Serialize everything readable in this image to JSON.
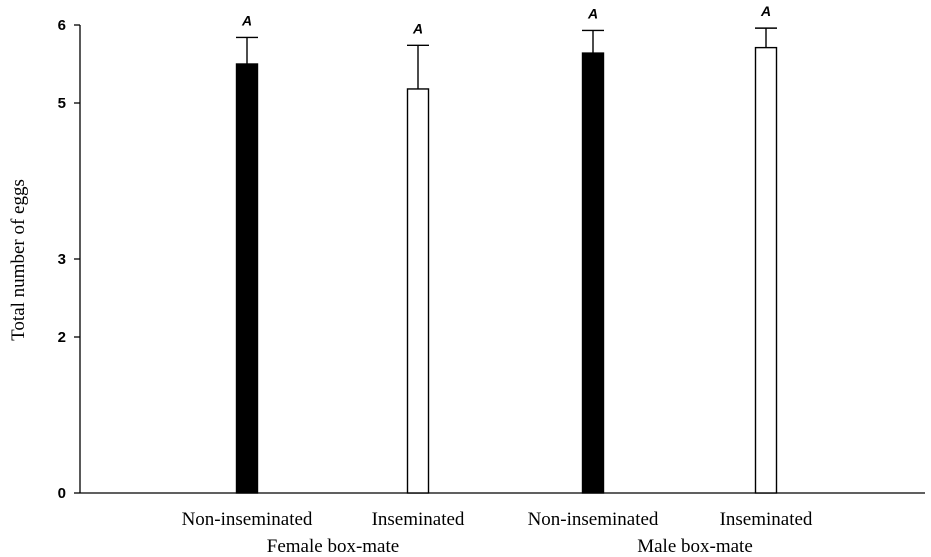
{
  "chart_data": {
    "type": "bar",
    "ylabel": "Total number of eggs",
    "ylim": [
      0,
      6
    ],
    "yticks": [
      0,
      2,
      3,
      5,
      6
    ],
    "categories": [
      "Non-inseminated",
      "Inseminated",
      "Non-inseminated",
      "Inseminated"
    ],
    "groups": [
      {
        "label": "Female box-mate",
        "categories": [
          0,
          1
        ]
      },
      {
        "label": "Male box-mate",
        "categories": [
          2,
          3
        ]
      }
    ],
    "bars": [
      {
        "category": "Non-inseminated",
        "group": "Female box-mate",
        "value": 5.5,
        "error": 0.34,
        "fill": "#000000",
        "letter": "A"
      },
      {
        "category": "Inseminated",
        "group": "Female box-mate",
        "value": 5.18,
        "error": 0.56,
        "fill": "#ffffff",
        "letter": "A"
      },
      {
        "category": "Non-inseminated",
        "group": "Male box-mate",
        "value": 5.64,
        "error": 0.29,
        "fill": "#000000",
        "letter": "A"
      },
      {
        "category": "Inseminated",
        "group": "Male box-mate",
        "value": 5.71,
        "error": 0.25,
        "fill": "#ffffff",
        "letter": "A"
      }
    ]
  }
}
